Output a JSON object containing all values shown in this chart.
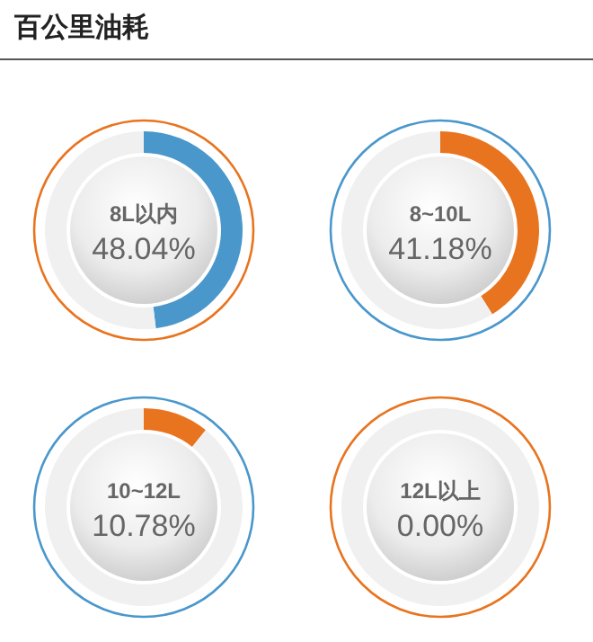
{
  "chart_data": [
    {
      "type": "donut",
      "title": "百公里油耗",
      "categories": [
        "8L以内",
        null
      ],
      "values": [
        48.04,
        51.96
      ],
      "colors": [
        "#4a97cc",
        "#f0f0f0"
      ],
      "value_labels": [
        "48.04%",
        null
      ]
    },
    {
      "type": "donut",
      "categories": [
        "8~10L",
        null
      ],
      "values": [
        41.18,
        58.82
      ],
      "colors": [
        "#e8741f",
        "#f0f0f0"
      ],
      "value_labels": [
        "41.18%",
        null
      ]
    },
    {
      "type": "donut",
      "categories": [
        "10~12L",
        null
      ],
      "values": [
        10.78,
        89.22
      ],
      "colors": [
        "#e8741f",
        "#f0f0f0"
      ],
      "value_labels": [
        "10.78%",
        null
      ]
    },
    {
      "type": "donut",
      "categories": [
        "12L以上",
        null
      ],
      "values": [
        0.0,
        100
      ],
      "value_labels": [
        "0.00%",
        null
      ]
    }
  ]
}
